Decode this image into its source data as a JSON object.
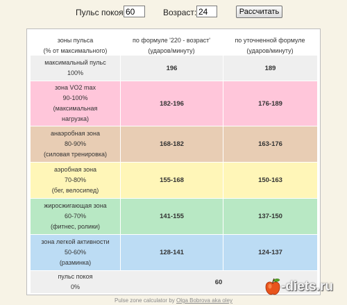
{
  "form": {
    "rest_pulse_label": "Пульс покоя:",
    "rest_pulse_value": "60",
    "age_label": "Возраст:",
    "age_value": "24",
    "calculate_label": "Рассчитать"
  },
  "header": {
    "col1_line1": "зоны пульса",
    "col1_line2": "(% от максимального)",
    "col2_line1": "по формуле '220 - возраст'",
    "col2_line2": "(ударов/минуту)",
    "col3_line1": "по уточненной формуле",
    "col3_line2": "(ударов/минуту)"
  },
  "rows": [
    {
      "lines": [
        "максимальный пульс",
        "100%"
      ],
      "formula_220": "196",
      "formula_refined": "189",
      "color": "#efefef"
    },
    {
      "lines": [
        "зона VO2 max",
        "90-100%",
        "(максимальная",
        "нагрузка)"
      ],
      "formula_220": "182-196",
      "formula_refined": "176-189",
      "color": "#ffc6da"
    },
    {
      "lines": [
        "анаэробная зона",
        "80-90%",
        "(силовая тренировка)"
      ],
      "formula_220": "168-182",
      "formula_refined": "163-176",
      "color": "#e8cdb4"
    },
    {
      "lines": [
        "аэробная зона",
        "70-80%",
        "(бег, велосипед)"
      ],
      "formula_220": "155-168",
      "formula_refined": "150-163",
      "color": "#fff6b8"
    },
    {
      "lines": [
        "жиросжигающая зона",
        "60-70%",
        "(фитнес, ролики)"
      ],
      "formula_220": "141-155",
      "formula_refined": "137-150",
      "color": "#b8e8c4"
    },
    {
      "lines": [
        "зона легкой активности",
        "50-60%",
        "(разминка)"
      ],
      "formula_220": "128-141",
      "formula_refined": "124-137",
      "color": "#bcdcf4"
    },
    {
      "lines": [
        "пульс покоя",
        "0%"
      ],
      "value_merged": "60",
      "color": "#efefef"
    }
  ],
  "footer": {
    "text": "Pulse zone calculator by",
    "author_link": "Olga Bobrova aka oley"
  },
  "watermark": {
    "text": "-diets.ru"
  }
}
